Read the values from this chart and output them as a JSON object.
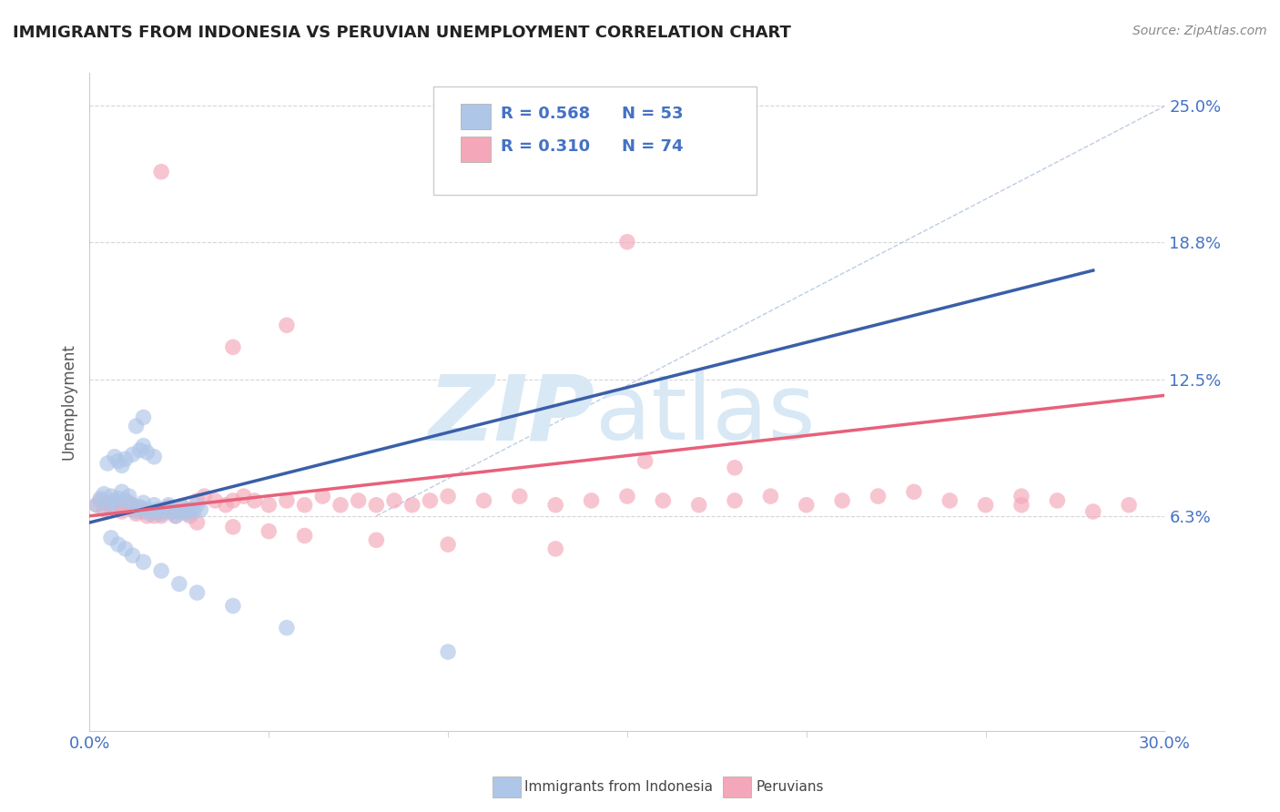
{
  "title": "IMMIGRANTS FROM INDONESIA VS PERUVIAN UNEMPLOYMENT CORRELATION CHART",
  "source": "Source: ZipAtlas.com",
  "ylabel": "Unemployment",
  "xlim": [
    0.0,
    0.3
  ],
  "ylim": [
    -0.035,
    0.265
  ],
  "yticks": [
    0.063,
    0.125,
    0.188,
    0.25
  ],
  "ytick_labels": [
    "6.3%",
    "12.5%",
    "18.8%",
    "25.0%"
  ],
  "xtick_labels": [
    "0.0%",
    "30.0%"
  ],
  "xticks": [
    0.0,
    0.3
  ],
  "color_blue": "#aec6e8",
  "color_pink": "#f4a7b8",
  "line_blue": "#3a5fa8",
  "line_pink": "#e8607a",
  "watermark_color": "#d8e8f5",
  "grid_color": "#cccccc",
  "title_color": "#222222",
  "axis_label_color": "#4472c4",
  "blue_scatter": [
    [
      0.002,
      0.068
    ],
    [
      0.003,
      0.071
    ],
    [
      0.004,
      0.073
    ],
    [
      0.005,
      0.068
    ],
    [
      0.006,
      0.072
    ],
    [
      0.007,
      0.069
    ],
    [
      0.008,
      0.071
    ],
    [
      0.009,
      0.074
    ],
    [
      0.01,
      0.07
    ],
    [
      0.011,
      0.072
    ],
    [
      0.012,
      0.068
    ],
    [
      0.013,
      0.065
    ],
    [
      0.014,
      0.067
    ],
    [
      0.015,
      0.069
    ],
    [
      0.016,
      0.066
    ],
    [
      0.017,
      0.064
    ],
    [
      0.018,
      0.068
    ],
    [
      0.019,
      0.066
    ],
    [
      0.02,
      0.064
    ],
    [
      0.021,
      0.066
    ],
    [
      0.022,
      0.068
    ],
    [
      0.023,
      0.065
    ],
    [
      0.024,
      0.063
    ],
    [
      0.025,
      0.065
    ],
    [
      0.026,
      0.067
    ],
    [
      0.027,
      0.064
    ],
    [
      0.028,
      0.066
    ],
    [
      0.029,
      0.065
    ],
    [
      0.03,
      0.068
    ],
    [
      0.031,
      0.066
    ],
    [
      0.005,
      0.087
    ],
    [
      0.007,
      0.09
    ],
    [
      0.008,
      0.088
    ],
    [
      0.009,
      0.086
    ],
    [
      0.01,
      0.089
    ],
    [
      0.012,
      0.091
    ],
    [
      0.014,
      0.093
    ],
    [
      0.015,
      0.095
    ],
    [
      0.016,
      0.092
    ],
    [
      0.018,
      0.09
    ],
    [
      0.013,
      0.104
    ],
    [
      0.015,
      0.108
    ],
    [
      0.006,
      0.053
    ],
    [
      0.008,
      0.05
    ],
    [
      0.01,
      0.048
    ],
    [
      0.012,
      0.045
    ],
    [
      0.015,
      0.042
    ],
    [
      0.02,
      0.038
    ],
    [
      0.025,
      0.032
    ],
    [
      0.03,
      0.028
    ],
    [
      0.04,
      0.022
    ],
    [
      0.055,
      0.012
    ],
    [
      0.1,
      0.001
    ]
  ],
  "pink_scatter": [
    [
      0.002,
      0.068
    ],
    [
      0.003,
      0.07
    ],
    [
      0.004,
      0.066
    ],
    [
      0.005,
      0.069
    ],
    [
      0.006,
      0.067
    ],
    [
      0.007,
      0.07
    ],
    [
      0.008,
      0.068
    ],
    [
      0.009,
      0.065
    ],
    [
      0.01,
      0.067
    ],
    [
      0.011,
      0.069
    ],
    [
      0.012,
      0.066
    ],
    [
      0.013,
      0.064
    ],
    [
      0.014,
      0.067
    ],
    [
      0.015,
      0.065
    ],
    [
      0.016,
      0.063
    ],
    [
      0.017,
      0.065
    ],
    [
      0.018,
      0.063
    ],
    [
      0.019,
      0.065
    ],
    [
      0.02,
      0.063
    ],
    [
      0.021,
      0.065
    ],
    [
      0.022,
      0.067
    ],
    [
      0.023,
      0.065
    ],
    [
      0.024,
      0.063
    ],
    [
      0.025,
      0.065
    ],
    [
      0.026,
      0.067
    ],
    [
      0.027,
      0.065
    ],
    [
      0.028,
      0.063
    ],
    [
      0.03,
      0.07
    ],
    [
      0.032,
      0.072
    ],
    [
      0.035,
      0.07
    ],
    [
      0.038,
      0.068
    ],
    [
      0.04,
      0.07
    ],
    [
      0.043,
      0.072
    ],
    [
      0.046,
      0.07
    ],
    [
      0.05,
      0.068
    ],
    [
      0.055,
      0.07
    ],
    [
      0.06,
      0.068
    ],
    [
      0.065,
      0.072
    ],
    [
      0.07,
      0.068
    ],
    [
      0.075,
      0.07
    ],
    [
      0.08,
      0.068
    ],
    [
      0.085,
      0.07
    ],
    [
      0.09,
      0.068
    ],
    [
      0.095,
      0.07
    ],
    [
      0.1,
      0.072
    ],
    [
      0.11,
      0.07
    ],
    [
      0.12,
      0.072
    ],
    [
      0.13,
      0.068
    ],
    [
      0.14,
      0.07
    ],
    [
      0.15,
      0.072
    ],
    [
      0.16,
      0.07
    ],
    [
      0.17,
      0.068
    ],
    [
      0.18,
      0.07
    ],
    [
      0.19,
      0.072
    ],
    [
      0.2,
      0.068
    ],
    [
      0.21,
      0.07
    ],
    [
      0.22,
      0.072
    ],
    [
      0.23,
      0.074
    ],
    [
      0.24,
      0.07
    ],
    [
      0.25,
      0.068
    ],
    [
      0.26,
      0.072
    ],
    [
      0.27,
      0.07
    ],
    [
      0.28,
      0.065
    ],
    [
      0.29,
      0.068
    ],
    [
      0.03,
      0.06
    ],
    [
      0.04,
      0.058
    ],
    [
      0.05,
      0.056
    ],
    [
      0.06,
      0.054
    ],
    [
      0.08,
      0.052
    ],
    [
      0.1,
      0.05
    ],
    [
      0.13,
      0.048
    ],
    [
      0.02,
      0.22
    ],
    [
      0.15,
      0.188
    ],
    [
      0.04,
      0.14
    ],
    [
      0.055,
      0.15
    ],
    [
      0.155,
      0.088
    ],
    [
      0.18,
      0.085
    ],
    [
      0.26,
      0.068
    ]
  ],
  "blue_line_x": [
    0.0,
    0.28
  ],
  "blue_line_y": [
    0.06,
    0.175
  ],
  "pink_line_x": [
    0.0,
    0.3
  ],
  "pink_line_y": [
    0.063,
    0.118
  ],
  "dashed_line_x": [
    0.08,
    0.3
  ],
  "dashed_line_y": [
    0.063,
    0.25
  ]
}
